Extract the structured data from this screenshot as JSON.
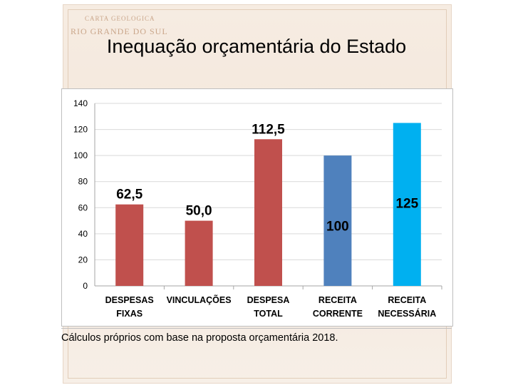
{
  "title": "Inequação orçamentária do Estado",
  "background": {
    "line1": "CARTA GEOLOGICA",
    "line2": "RIO GRANDE DO SUL"
  },
  "footnote": "Cálculos próprios com base na proposta orçamentária 2018.",
  "colors": {
    "red": "#c0504d",
    "blue": "#4f81bd",
    "cyan": "#00b0f0"
  },
  "chart_data": {
    "type": "bar",
    "categories": [
      [
        "DESPESAS",
        "FIXAS"
      ],
      [
        "VINCULAÇÕES"
      ],
      [
        "DESPESA",
        "TOTAL"
      ],
      [
        "RECEITA",
        "CORRENTE"
      ],
      [
        "RECEITA",
        "NECESSÁRIA"
      ]
    ],
    "values": [
      62.5,
      50.0,
      112.5,
      100,
      125
    ],
    "labels": [
      "62,5",
      "50,0",
      "112,5",
      "100",
      "125"
    ],
    "label_position": [
      "above",
      "above",
      "above",
      "inside",
      "inside"
    ],
    "bar_colors": [
      "#c0504d",
      "#c0504d",
      "#c0504d",
      "#4f81bd",
      "#00b0f0"
    ],
    "ylim": [
      0,
      140
    ],
    "yticks": [
      0,
      20,
      40,
      60,
      80,
      100,
      120,
      140
    ],
    "grid": true,
    "legend": "none",
    "xlabel": "",
    "ylabel": ""
  }
}
